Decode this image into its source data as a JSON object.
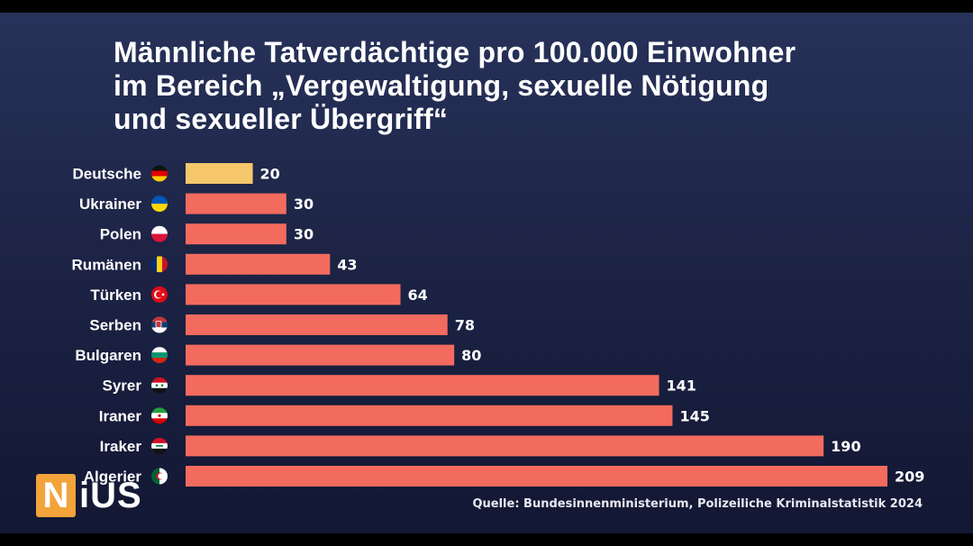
{
  "title_lines": [
    "Männliche Tatverdächtige pro 100.000 Einwohner",
    "im Bereich „Vergewaltigung, sexuelle Nötigung",
    "und sexueller Übergriff“"
  ],
  "logo": {
    "letter": "N",
    "rest": "iUS"
  },
  "source": "Quelle: Bundesinnenministerium, Polizeiliche Kriminalstatistik 2024",
  "colors": {
    "highlight_bar": "#f6c76a",
    "bar": "#f36b5e",
    "text": "#ffffff",
    "logo_accent": "#f2a33a"
  },
  "chart_data": {
    "type": "bar",
    "orientation": "horizontal",
    "title": "Männliche Tatverdächtige pro 100.000 Einwohner im Bereich „Vergewaltigung, sexuelle Nötigung und sexueller Übergriff“",
    "xlabel": "",
    "ylabel": "",
    "xlim": [
      0,
      209
    ],
    "grid": false,
    "categories": [
      "Deutsche",
      "Ukrainer",
      "Polen",
      "Rumänen",
      "Türken",
      "Serben",
      "Bulgaren",
      "Syrer",
      "Iraner",
      "Iraker",
      "Algerier"
    ],
    "values": [
      20,
      30,
      30,
      43,
      64,
      78,
      80,
      141,
      145,
      190,
      209
    ],
    "data_labels": [
      "20",
      "30",
      "30",
      "43",
      "64",
      "78",
      "80",
      "141",
      "145",
      "190",
      "209"
    ],
    "highlighted_category": "Deutsche",
    "flags": [
      "germany-flag-icon",
      "ukraine-flag-icon",
      "poland-flag-icon",
      "romania-flag-icon",
      "turkey-flag-icon",
      "serbia-flag-icon",
      "bulgaria-flag-icon",
      "syria-flag-icon",
      "iran-flag-icon",
      "iraq-flag-icon",
      "algeria-flag-icon"
    ]
  }
}
